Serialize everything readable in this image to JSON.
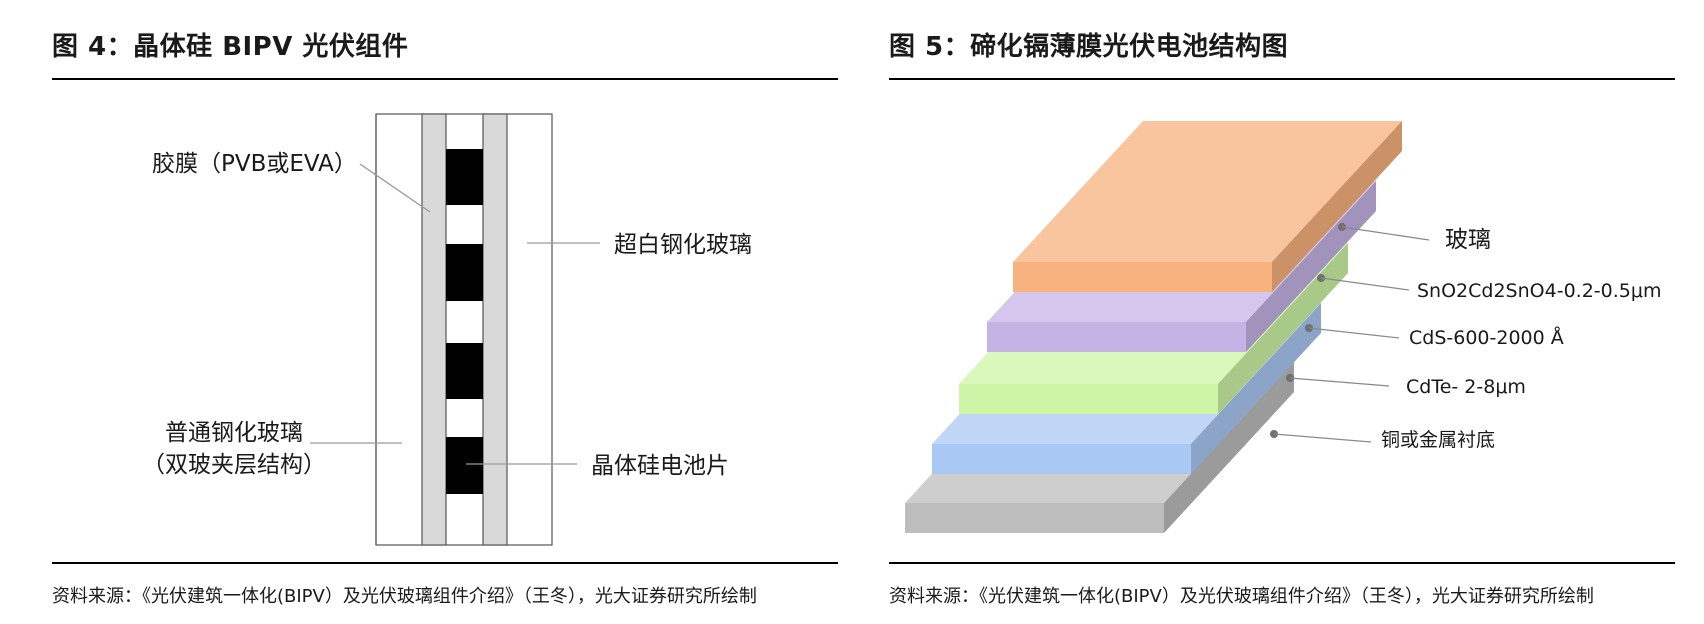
{
  "left": {
    "title": "图 4：晶体硅 BIPV 光伏组件",
    "labels": {
      "film": "胶膜（PVB或EVA）",
      "ultra_white_glass": "超白钢化玻璃",
      "ordinary_glass_line1": "普通钢化玻璃",
      "ordinary_glass_line2": "（双玻夹层结构）",
      "cell": "晶体硅电池片"
    },
    "source": "资料来源：《光伏建筑一体化(BIPV）及光伏玻璃组件介绍》（王冬），光大证券研究所绘制"
  },
  "right": {
    "title": "图 5：碲化镉薄膜光伏电池结构图",
    "layers": [
      {
        "name": "玻璃",
        "color": "#f7b27e"
      },
      {
        "name": "SnO2Cd2SnO4-0.2-0.5μm",
        "color": "#c6b3e6"
      },
      {
        "name": "CdS-600-2000 Å",
        "color": "#cdf5a5"
      },
      {
        "name": "CdTe- 2-8μm",
        "color": "#a9c8f3"
      },
      {
        "name": "铜或金属衬底",
        "color": "#bdbdbd"
      }
    ],
    "source": "资料来源：《光伏建筑一体化(BIPV）及光伏玻璃组件介绍》（王冬），光大证券研究所绘制"
  }
}
